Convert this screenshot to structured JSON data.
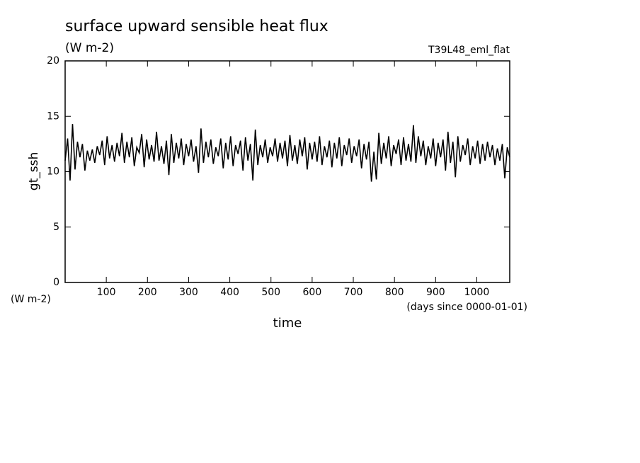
{
  "chart_data": {
    "type": "line",
    "title": "surface upward sensible heat flux",
    "subtitle": "(W m-2)",
    "annotation": "T39L48_eml_flat",
    "y_label": "gt_ssh",
    "y_units": "(W m-2)",
    "x_label": "time",
    "x_units": "(days since 0000-01-01)",
    "color": "#000000",
    "xlim": [
      0,
      1080
    ],
    "xticks": [
      100,
      200,
      300,
      400,
      500,
      600,
      700,
      800,
      900,
      1000
    ],
    "ylim": [
      0,
      20
    ],
    "yticks": [
      0,
      5,
      10,
      15,
      20
    ],
    "x": [
      0,
      6,
      12,
      18,
      24,
      30,
      36,
      42,
      48,
      54,
      60,
      66,
      72,
      78,
      84,
      90,
      96,
      102,
      108,
      114,
      120,
      126,
      132,
      138,
      144,
      150,
      156,
      162,
      168,
      174,
      180,
      186,
      192,
      198,
      204,
      210,
      216,
      222,
      228,
      234,
      240,
      246,
      252,
      258,
      264,
      270,
      276,
      282,
      288,
      294,
      300,
      306,
      312,
      318,
      324,
      330,
      336,
      342,
      348,
      354,
      360,
      366,
      372,
      378,
      384,
      390,
      396,
      402,
      408,
      414,
      420,
      426,
      432,
      438,
      444,
      450,
      456,
      462,
      468,
      474,
      480,
      486,
      492,
      498,
      504,
      510,
      516,
      522,
      528,
      534,
      540,
      546,
      552,
      558,
      564,
      570,
      576,
      582,
      588,
      594,
      600,
      606,
      612,
      618,
      624,
      630,
      636,
      642,
      648,
      654,
      660,
      666,
      672,
      678,
      684,
      690,
      696,
      702,
      708,
      714,
      720,
      726,
      732,
      738,
      744,
      750,
      756,
      762,
      768,
      774,
      780,
      786,
      792,
      798,
      804,
      810,
      816,
      822,
      828,
      834,
      840,
      846,
      852,
      858,
      864,
      870,
      876,
      882,
      888,
      894,
      900,
      906,
      912,
      918,
      924,
      930,
      936,
      942,
      948,
      954,
      960,
      966,
      972,
      978,
      984,
      990,
      996,
      1002,
      1008,
      1014,
      1020,
      1026,
      1032,
      1038,
      1044,
      1050,
      1056,
      1062,
      1068,
      1074,
      1080
    ],
    "values": [
      11.0,
      13.0,
      9.2,
      14.3,
      10.2,
      12.7,
      11.3,
      12.5,
      10.1,
      11.9,
      11.0,
      12.0,
      10.8,
      12.3,
      11.5,
      12.8,
      10.6,
      13.2,
      11.2,
      12.4,
      10.9,
      12.6,
      11.4,
      13.5,
      10.8,
      12.7,
      11.3,
      13.1,
      10.5,
      12.2,
      11.7,
      13.4,
      10.4,
      12.9,
      11.1,
      12.4,
      10.9,
      13.6,
      11.0,
      12.3,
      10.7,
      12.8,
      9.7,
      13.4,
      10.8,
      12.6,
      11.2,
      13.0,
      10.6,
      12.5,
      11.4,
      12.9,
      10.9,
      12.3,
      9.9,
      13.9,
      10.8,
      12.7,
      11.3,
      12.9,
      10.7,
      12.2,
      11.4,
      13.0,
      10.3,
      12.6,
      11.1,
      13.2,
      10.5,
      12.4,
      11.6,
      12.8,
      10.1,
      13.1,
      11.0,
      12.5,
      9.2,
      13.8,
      10.6,
      12.4,
      11.3,
      12.9,
      10.8,
      12.2,
      11.4,
      13.0,
      10.9,
      12.6,
      11.2,
      12.8,
      10.5,
      13.3,
      11.0,
      12.4,
      10.7,
      12.9,
      11.4,
      13.1,
      10.2,
      12.6,
      11.1,
      12.7,
      10.9,
      13.2,
      10.6,
      12.3,
      11.3,
      12.8,
      10.4,
      12.6,
      11.2,
      13.1,
      10.5,
      12.4,
      11.5,
      13.0,
      10.8,
      12.3,
      11.4,
      12.9,
      10.3,
      12.5,
      11.1,
      12.7,
      9.1,
      11.8,
      9.3,
      13.5,
      10.7,
      12.6,
      11.2,
      13.2,
      10.5,
      12.4,
      11.6,
      12.9,
      10.6,
      13.1,
      11.0,
      12.5,
      10.9,
      14.2,
      10.8,
      13.2,
      11.4,
      12.8,
      10.6,
      12.3,
      11.2,
      13.0,
      10.5,
      12.6,
      11.3,
      12.9,
      10.1,
      13.6,
      10.8,
      12.7,
      9.5,
      13.2,
      10.9,
      12.4,
      11.5,
      13.0,
      10.6,
      12.3,
      11.2,
      12.8,
      10.7,
      12.5,
      11.0,
      12.7,
      11.3,
      12.4,
      10.6,
      12.1,
      11.0,
      12.5,
      9.4,
      12.2,
      11.3
    ]
  }
}
